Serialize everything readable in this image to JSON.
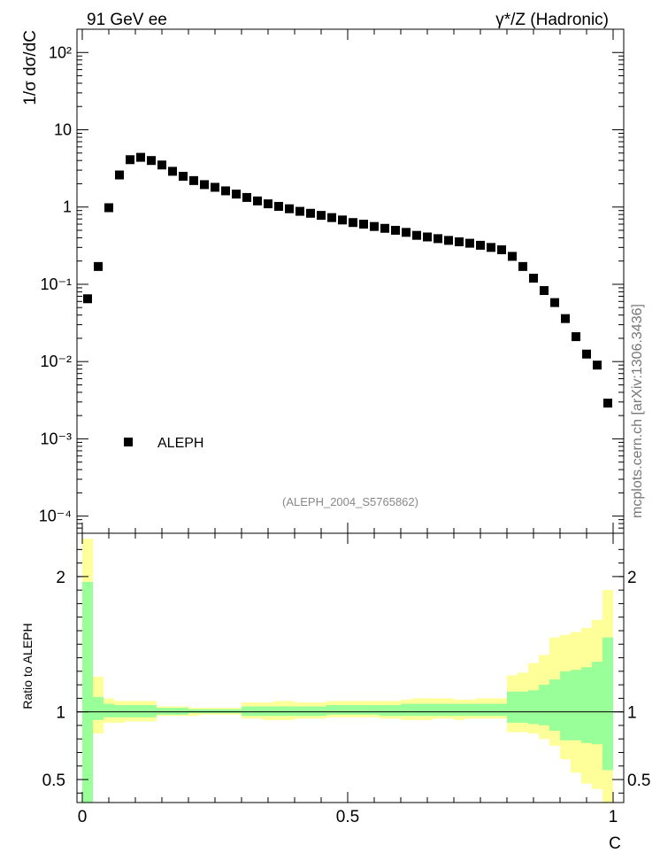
{
  "header": {
    "left_title": "91 GeV ee",
    "right_title": "γ*/Z (Hadronic)"
  },
  "watermark": "mcplots.cern.ch [arXiv:1306.3436]",
  "reference": "(ALEPH_2004_S5765862)",
  "chart_data": [
    {
      "type": "scatter",
      "panel": "main",
      "ylabel": "1/σ  dσ/dC",
      "yscale": "log",
      "ylim": [
        6e-05,
        200
      ],
      "xlim": [
        -0.01,
        1.02
      ],
      "y_ticks": [
        {
          "value": 100,
          "label": "10²"
        },
        {
          "value": 10,
          "label": "10"
        },
        {
          "value": 1,
          "label": "1"
        },
        {
          "value": 0.1,
          "label": "10⁻¹"
        },
        {
          "value": 0.01,
          "label": "10⁻²"
        },
        {
          "value": 0.001,
          "label": "10⁻³"
        },
        {
          "value": 0.0001,
          "label": "10⁻⁴"
        }
      ],
      "legend": {
        "label": "ALEPH",
        "position": "lower-left"
      },
      "series": [
        {
          "name": "ALEPH",
          "x": [
            0.01,
            0.03,
            0.05,
            0.07,
            0.09,
            0.11,
            0.13,
            0.15,
            0.17,
            0.19,
            0.21,
            0.23,
            0.25,
            0.27,
            0.29,
            0.31,
            0.33,
            0.35,
            0.37,
            0.39,
            0.41,
            0.43,
            0.45,
            0.47,
            0.49,
            0.51,
            0.53,
            0.55,
            0.57,
            0.59,
            0.61,
            0.63,
            0.65,
            0.67,
            0.69,
            0.71,
            0.73,
            0.75,
            0.77,
            0.79,
            0.81,
            0.83,
            0.85,
            0.87,
            0.89,
            0.91,
            0.93,
            0.95,
            0.97,
            0.99
          ],
          "values": [
            0.065,
            0.17,
            0.98,
            2.6,
            4.1,
            4.4,
            4.0,
            3.5,
            2.9,
            2.5,
            2.2,
            1.95,
            1.8,
            1.62,
            1.47,
            1.33,
            1.2,
            1.1,
            1.02,
            0.95,
            0.88,
            0.83,
            0.78,
            0.73,
            0.68,
            0.63,
            0.6,
            0.56,
            0.53,
            0.5,
            0.47,
            0.43,
            0.41,
            0.39,
            0.37,
            0.355,
            0.34,
            0.32,
            0.3,
            0.28,
            0.23,
            0.17,
            0.12,
            0.083,
            0.058,
            0.036,
            0.021,
            0.0125,
            0.009,
            0.0029
          ]
        }
      ]
    },
    {
      "type": "area",
      "panel": "ratio",
      "ylabel": "Ratio to ALEPH",
      "xlabel": "C",
      "ylim": [
        0.33,
        2.32
      ],
      "x_ticks": [
        {
          "value": 0,
          "label": "0"
        },
        {
          "value": 0.5,
          "label": "0.5"
        },
        {
          "value": 1,
          "label": "1"
        }
      ],
      "y_ticks": [
        {
          "value": 0.5,
          "label": "0.5"
        },
        {
          "value": 1,
          "label": "1"
        },
        {
          "value": 2,
          "label": "2"
        }
      ],
      "bin_edges": [
        0.0,
        0.02,
        0.04,
        0.06,
        0.08,
        0.1,
        0.12,
        0.14,
        0.16,
        0.18,
        0.2,
        0.22,
        0.24,
        0.26,
        0.28,
        0.3,
        0.32,
        0.34,
        0.36,
        0.38,
        0.4,
        0.42,
        0.44,
        0.46,
        0.48,
        0.5,
        0.52,
        0.54,
        0.56,
        0.58,
        0.6,
        0.62,
        0.64,
        0.66,
        0.68,
        0.7,
        0.72,
        0.74,
        0.76,
        0.78,
        0.8,
        0.82,
        0.84,
        0.86,
        0.88,
        0.9,
        0.92,
        0.94,
        0.96,
        0.98,
        1.0
      ],
      "bands": [
        {
          "name": "total uncertainty",
          "color": "#ffff99",
          "low": [
            0.33,
            0.84,
            0.92,
            0.92,
            0.93,
            0.93,
            0.93,
            0.97,
            0.97,
            0.97,
            0.97,
            0.98,
            0.98,
            0.98,
            0.98,
            0.95,
            0.95,
            0.94,
            0.94,
            0.94,
            0.95,
            0.95,
            0.95,
            0.96,
            0.96,
            0.96,
            0.96,
            0.96,
            0.95,
            0.95,
            0.94,
            0.94,
            0.94,
            0.95,
            0.95,
            0.94,
            0.95,
            0.95,
            0.95,
            0.95,
            0.85,
            0.85,
            0.84,
            0.8,
            0.75,
            0.65,
            0.55,
            0.47,
            0.43,
            0.33
          ],
          "high": [
            2.28,
            1.26,
            1.1,
            1.08,
            1.08,
            1.08,
            1.08,
            1.04,
            1.04,
            1.04,
            1.03,
            1.03,
            1.03,
            1.03,
            1.03,
            1.07,
            1.07,
            1.07,
            1.08,
            1.08,
            1.07,
            1.07,
            1.07,
            1.08,
            1.08,
            1.08,
            1.08,
            1.08,
            1.08,
            1.08,
            1.09,
            1.1,
            1.1,
            1.1,
            1.1,
            1.09,
            1.09,
            1.1,
            1.1,
            1.1,
            1.27,
            1.29,
            1.36,
            1.42,
            1.55,
            1.57,
            1.59,
            1.62,
            1.68,
            1.9
          ]
        },
        {
          "name": "statistical uncertainty",
          "color": "#99ff99",
          "low": [
            0.33,
            0.94,
            0.96,
            0.96,
            0.96,
            0.96,
            0.96,
            0.98,
            0.98,
            0.98,
            0.99,
            0.99,
            0.99,
            0.99,
            0.99,
            0.97,
            0.97,
            0.97,
            0.97,
            0.97,
            0.97,
            0.97,
            0.97,
            0.98,
            0.98,
            0.98,
            0.98,
            0.98,
            0.97,
            0.97,
            0.97,
            0.97,
            0.97,
            0.97,
            0.97,
            0.97,
            0.97,
            0.97,
            0.97,
            0.97,
            0.92,
            0.92,
            0.91,
            0.9,
            0.86,
            0.79,
            0.79,
            0.77,
            0.76,
            0.57
          ],
          "high": [
            1.96,
            1.11,
            1.06,
            1.05,
            1.05,
            1.05,
            1.05,
            1.03,
            1.03,
            1.03,
            1.02,
            1.02,
            1.02,
            1.02,
            1.02,
            1.04,
            1.04,
            1.04,
            1.04,
            1.04,
            1.04,
            1.04,
            1.04,
            1.05,
            1.05,
            1.05,
            1.05,
            1.05,
            1.05,
            1.05,
            1.06,
            1.06,
            1.06,
            1.06,
            1.06,
            1.06,
            1.06,
            1.06,
            1.06,
            1.06,
            1.15,
            1.15,
            1.16,
            1.2,
            1.24,
            1.3,
            1.31,
            1.33,
            1.37,
            1.55
          ]
        }
      ]
    }
  ]
}
